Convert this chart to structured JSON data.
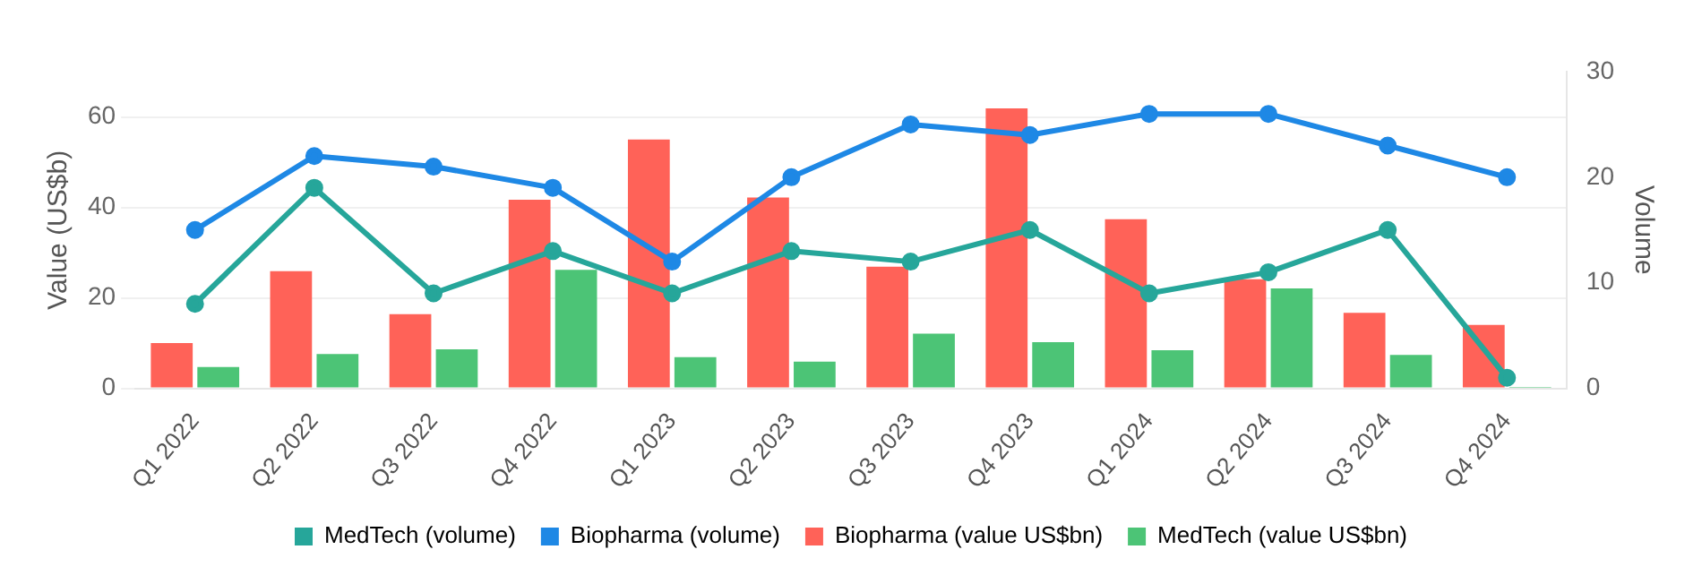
{
  "chart_data": {
    "type": "bar",
    "ylabel": "Value (US$b)",
    "y2label": "Volume",
    "categories": [
      "Q1 2022",
      "Q2 2022",
      "Q3 2022",
      "Q4 2022",
      "Q1 2023",
      "Q2 2023",
      "Q3 2023",
      "Q4 2023",
      "Q1 2024",
      "Q2 2024",
      "Q3 2024",
      "Q4 2024"
    ],
    "series": [
      {
        "name": "MedTech (volume)",
        "type": "line",
        "axis": "y2",
        "color": "#26a69a",
        "values": [
          8,
          19,
          9,
          13,
          9,
          13,
          12,
          15,
          9,
          11,
          15,
          1
        ]
      },
      {
        "name": "Biopharma (volume)",
        "type": "line",
        "axis": "y2",
        "color": "#1e88e5",
        "values": [
          15,
          22,
          21,
          19,
          12,
          20,
          25,
          24,
          26,
          26,
          23,
          20
        ]
      },
      {
        "name": "Biopharma (value US$bn)",
        "color": "#ff6258",
        "values": [
          10,
          25.9,
          16.4,
          41.7,
          55,
          42.2,
          26.9,
          61.9,
          37.4,
          24.1,
          16.7,
          14
        ]
      },
      {
        "name": "MedTech (value US$bn)",
        "color": "#4cc476",
        "values": [
          4.7,
          7.6,
          8.6,
          26.2,
          6.9,
          5.9,
          12.1,
          10.2,
          8.4,
          22.1,
          7.4,
          0.3
        ]
      }
    ],
    "ylim": [
      0,
      70
    ],
    "yticks": [
      0,
      20,
      40,
      60
    ],
    "y2lim": [
      0,
      30
    ],
    "y2ticks": [
      0,
      10,
      20,
      30
    ],
    "grid": "y",
    "legend": "bottom",
    "marker": "circle",
    "line_style": "solid"
  }
}
